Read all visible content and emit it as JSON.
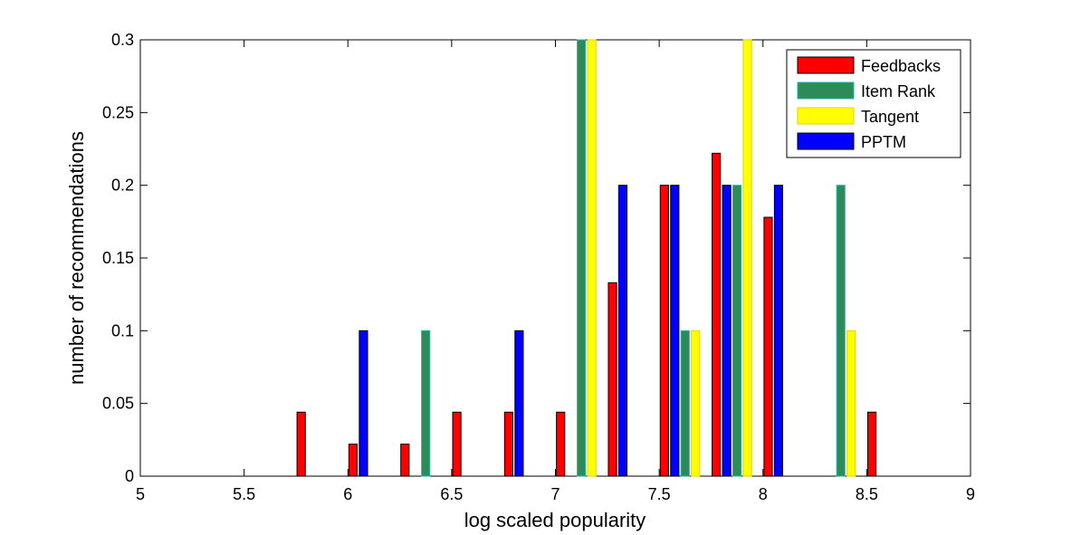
{
  "chart_data": {
    "type": "bar",
    "title": "",
    "xlabel": "log scaled popularity",
    "ylabel": "number of recommendations",
    "xlim": [
      5,
      9
    ],
    "ylim": [
      0,
      0.3
    ],
    "xticks": [
      "5",
      "5.5",
      "6",
      "6.5",
      "7",
      "7.5",
      "8",
      "8.5",
      "9"
    ],
    "yticks": [
      "0",
      "0.05",
      "0.1",
      "0.15",
      "0.2",
      "0.25",
      "0.3"
    ],
    "legend_position": "top-right",
    "bin_centers": [
      5.1,
      5.35,
      5.6,
      5.85,
      6.1,
      6.35,
      6.6,
      6.85,
      7.1,
      7.35,
      7.6,
      7.85,
      8.1,
      8.35,
      8.6,
      8.85
    ],
    "series": [
      {
        "name": "Feedbacks",
        "color": "#ff0000",
        "edge": "#000000",
        "offset": -0.075,
        "values": [
          0,
          0,
          0,
          0.044,
          0.022,
          0.022,
          0.044,
          0.044,
          0.044,
          0.133,
          0.2,
          0.222,
          0.178,
          0,
          0.044,
          0
        ]
      },
      {
        "name": "Item Rank",
        "color": "#2e8b57",
        "edge": "#1fb5b0",
        "offset": 0.025,
        "values": [
          0,
          0,
          0,
          0,
          0,
          0.1,
          0,
          0,
          0.3,
          0,
          0.1,
          0.2,
          0,
          0.2,
          0,
          0
        ]
      },
      {
        "name": "Tangent",
        "color": "#ffff00",
        "edge": "#e6d200",
        "offset": 0.075,
        "values": [
          0,
          0,
          0,
          0,
          0,
          0,
          0,
          0,
          0.3,
          0,
          0.1,
          0.3,
          0,
          0.1,
          0,
          0
        ]
      },
      {
        "name": "PPTM",
        "color": "#0000ff",
        "edge": "#000000",
        "offset": -0.025,
        "values": [
          0,
          0,
          0,
          0,
          0.1,
          0,
          0,
          0.1,
          0,
          0.2,
          0.2,
          0.2,
          0.2,
          0,
          0,
          0
        ]
      }
    ]
  }
}
